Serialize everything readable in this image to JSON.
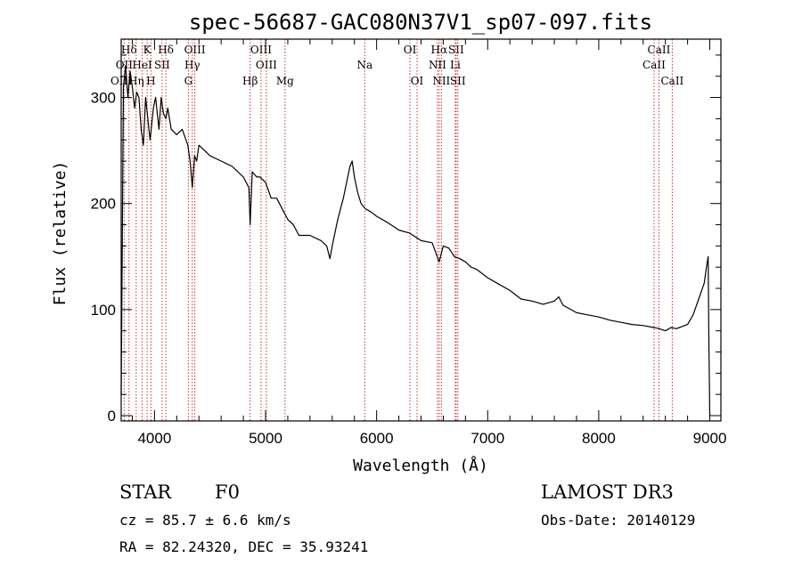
{
  "chart_data": {
    "type": "line",
    "title": "spec-56687-GAC080N37V1_sp07-097.fits",
    "xlabel": "Wavelength (Å)",
    "ylabel": "Flux (relative)",
    "xlim": [
      3700,
      9100
    ],
    "ylim": [
      -5,
      355
    ],
    "xticks": [
      4000,
      5000,
      6000,
      7000,
      8000,
      9000
    ],
    "yticks": [
      0,
      100,
      200,
      300
    ],
    "series": [
      {
        "name": "flux",
        "x": [
          3700,
          3720,
          3740,
          3760,
          3780,
          3800,
          3820,
          3840,
          3860,
          3880,
          3900,
          3920,
          3940,
          3960,
          3970,
          3990,
          4010,
          4040,
          4060,
          4080,
          4102,
          4120,
          4150,
          4200,
          4250,
          4300,
          4320,
          4340,
          4360,
          4380,
          4400,
          4450,
          4500,
          4600,
          4700,
          4800,
          4850,
          4861,
          4880,
          4920,
          4950,
          5000,
          5050,
          5100,
          5150,
          5200,
          5250,
          5300,
          5400,
          5500,
          5550,
          5580,
          5600,
          5650,
          5700,
          5730,
          5760,
          5780,
          5800,
          5830,
          5860,
          5900,
          5950,
          6000,
          6100,
          6200,
          6300,
          6400,
          6500,
          6563,
          6600,
          6650,
          6700,
          6750,
          6800,
          6850,
          6900,
          7000,
          7100,
          7200,
          7300,
          7400,
          7500,
          7600,
          7640,
          7680,
          7750,
          7800,
          7900,
          8000,
          8100,
          8200,
          8300,
          8400,
          8500,
          8542,
          8600,
          8650,
          8700,
          8750,
          8800,
          8850,
          8900,
          8950,
          8970,
          8985,
          8992,
          9000
        ],
        "y": [
          20,
          310,
          330,
          300,
          325,
          310,
          290,
          305,
          300,
          270,
          255,
          300,
          280,
          260,
          270,
          290,
          300,
          270,
          300,
          285,
          280,
          290,
          270,
          265,
          270,
          255,
          240,
          215,
          245,
          240,
          255,
          250,
          245,
          240,
          235,
          225,
          215,
          180,
          230,
          225,
          225,
          220,
          205,
          205,
          195,
          185,
          180,
          170,
          170,
          165,
          160,
          148,
          160,
          185,
          205,
          220,
          235,
          240,
          225,
          210,
          200,
          195,
          192,
          188,
          182,
          175,
          172,
          165,
          163,
          145,
          160,
          158,
          150,
          148,
          145,
          140,
          138,
          130,
          124,
          118,
          110,
          108,
          105,
          108,
          112,
          104,
          100,
          97,
          95,
          93,
          90,
          88,
          86,
          85,
          83,
          82,
          80,
          83,
          82,
          84,
          86,
          95,
          110,
          125,
          140,
          150,
          70,
          0
        ]
      }
    ],
    "lines": [
      {
        "label": "Hδ",
        "wl": 3770,
        "row": 1
      },
      {
        "label": "K",
        "wl": 3934,
        "row": 1
      },
      {
        "label": "Hδ",
        "wl": 4102,
        "row": 1
      },
      {
        "label": "OIII",
        "wl": 4363,
        "row": 1
      },
      {
        "label": "OIII",
        "wl": 4959,
        "row": 1
      },
      {
        "label": "OI",
        "wl": 6300,
        "row": 1
      },
      {
        "label": "Hα",
        "wl": 6563,
        "row": 1
      },
      {
        "label": "SII",
        "wl": 6716,
        "row": 1
      },
      {
        "label": "CaII",
        "wl": 8542,
        "row": 1
      },
      {
        "label": "OII",
        "wl": 3727,
        "row": 2
      },
      {
        "label": "HeI",
        "wl": 3889,
        "row": 2
      },
      {
        "label": "SII",
        "wl": 4068,
        "row": 2
      },
      {
        "label": "Hγ",
        "wl": 4340,
        "row": 2
      },
      {
        "label": "OIII",
        "wl": 5007,
        "row": 2
      },
      {
        "label": "Na",
        "wl": 5893,
        "row": 2
      },
      {
        "label": "NII",
        "wl": 6548,
        "row": 2
      },
      {
        "label": "Li",
        "wl": 6708,
        "row": 2
      },
      {
        "label": "CaII",
        "wl": 8498,
        "row": 2
      },
      {
        "label": "OIII",
        "wl": 3700,
        "row": 3
      },
      {
        "label": "Hη",
        "wl": 3835,
        "row": 3
      },
      {
        "label": "H",
        "wl": 3968,
        "row": 3
      },
      {
        "label": "G",
        "wl": 4305,
        "row": 3
      },
      {
        "label": "Hβ",
        "wl": 4861,
        "row": 3
      },
      {
        "label": "Mg",
        "wl": 5175,
        "row": 3
      },
      {
        "label": "OI",
        "wl": 6364,
        "row": 3
      },
      {
        "label": "NII",
        "wl": 6583,
        "row": 3
      },
      {
        "label": "SII",
        "wl": 6731,
        "row": 3
      },
      {
        "label": "CaII",
        "wl": 8662,
        "row": 3
      }
    ]
  },
  "info": {
    "class": "STAR",
    "subclass": "F0",
    "survey": "LAMOST DR3",
    "cz": "cz = 85.7 ± 6.6 km/s",
    "obs_date": "Obs-Date: 20140129",
    "radec": "RA =  82.24320, DEC =  35.93241"
  }
}
